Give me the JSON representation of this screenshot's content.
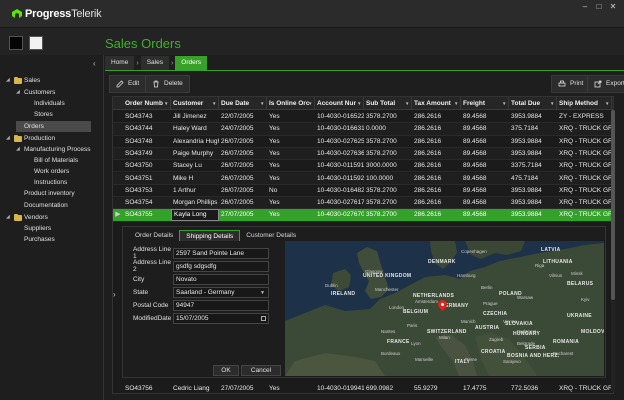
{
  "app": {
    "brand_bold": "Progress",
    "brand_light": "Telerik"
  },
  "window_controls": [
    "–",
    "□",
    "✕"
  ],
  "header": {
    "title": "Sales Orders"
  },
  "sidebar": {
    "items": [
      {
        "label": "Sales",
        "level": 0,
        "folder": true
      },
      {
        "label": "Customers",
        "level": 1,
        "folder": false
      },
      {
        "label": "Individuals",
        "level": 2,
        "folder": false
      },
      {
        "label": "Stores",
        "level": 2,
        "folder": false
      },
      {
        "label": "Orders",
        "level": 1,
        "folder": false,
        "selected": true
      },
      {
        "label": "Production",
        "level": 0,
        "folder": true
      },
      {
        "label": "Manufacturing Process",
        "level": 1,
        "folder": false
      },
      {
        "label": "Bill of Materials",
        "level": 2,
        "folder": false
      },
      {
        "label": "Work orders",
        "level": 2,
        "folder": false
      },
      {
        "label": "Instructions",
        "level": 2,
        "folder": false
      },
      {
        "label": "Product inventory",
        "level": 1,
        "folder": false
      },
      {
        "label": "Documentation",
        "level": 1,
        "folder": false
      },
      {
        "label": "Vendors",
        "level": 0,
        "folder": true
      },
      {
        "label": "Suppliers",
        "level": 1,
        "folder": false
      },
      {
        "label": "Purchases",
        "level": 1,
        "folder": false
      }
    ]
  },
  "breadcrumb": {
    "home": "Home",
    "sales": "Sales",
    "orders": "Orders"
  },
  "toolbar": {
    "edit": "Edit",
    "delete": "Delete",
    "print": "Print",
    "export": "Export"
  },
  "grid": {
    "columns": [
      "Order Numb",
      "Customer",
      "Due Date",
      "Is Online Orc",
      "Account Nur",
      "Sub Total",
      "Tax Amount",
      "Freight",
      "Total Due",
      "Ship Method"
    ],
    "rows": [
      [
        "SO43743",
        "Jill Jimenez",
        "22/07/2005",
        "Yes",
        "10-4030-016522",
        "3578.2700",
        "286.2616",
        "89.4568",
        "3953.9884",
        "ZY - EXPRESS"
      ],
      [
        "SO43744",
        "Haley Ward",
        "24/07/2005",
        "Yes",
        "10-4030-016631",
        "0.0000",
        "286.2616",
        "89.4568",
        "375.7184",
        "XRQ - TRUCK GR"
      ],
      [
        "SO43748",
        "Alexandria Hughe",
        "26/07/2005",
        "Yes",
        "10-4030-027625",
        "3578.2700",
        "286.2616",
        "89.4568",
        "3953.9884",
        "XRQ - TRUCK GR"
      ],
      [
        "SO43749",
        "Paige Murphy",
        "26/07/2005",
        "Yes",
        "10-4030-027636",
        "3578.2700",
        "286.2616",
        "89.4568",
        "3953.9884",
        "XRQ - TRUCK GR"
      ],
      [
        "SO43750",
        "Stacey Lu",
        "26/07/2005",
        "Yes",
        "10-4030-011591",
        "3000.0000",
        "286.2616",
        "89.4568",
        "3375.7184",
        "XRQ - TRUCK GR"
      ],
      [
        "SO43751",
        "Mike H",
        "26/07/2005",
        "Yes",
        "10-4030-011592",
        "100.0000",
        "286.2616",
        "89.4568",
        "475.7184",
        "XRQ - TRUCK GR"
      ],
      [
        "SO43753",
        "1 Arthur",
        "26/07/2005",
        "No",
        "10-4030-016482",
        "3578.2700",
        "286.2616",
        "89.4568",
        "3953.9884",
        "XRQ - TRUCK GR"
      ],
      [
        "SO43754",
        "Morgan Phillips",
        "26/07/2005",
        "Yes",
        "10-4030-027617",
        "3578.2700",
        "286.2616",
        "89.4568",
        "3953.9884",
        "XRQ - TRUCK GR"
      ],
      [
        "SO43755",
        "Kayla Long",
        "27/07/2005",
        "Yes",
        "10-4030-027670",
        "3578.2700",
        "286.2616",
        "89.4568",
        "3953.9884",
        "XRQ - TRUCK GR"
      ]
    ],
    "last_row": [
      "SO43756",
      "Cedric Liang",
      "27/07/2005",
      "Yes",
      "10-4030-019941",
      "699.0982",
      "55.9279",
      "17.4775",
      "772.5036",
      "XRQ - TRUCK GR"
    ]
  },
  "details": {
    "tabs": [
      "Order Details",
      "Shipping Details",
      "Customer Details"
    ],
    "fields": [
      {
        "label": "Address Line 1",
        "value": "2597 Sand Pointe Lane"
      },
      {
        "label": "Address Line 2",
        "value": "gsdfg sdgsdfg"
      },
      {
        "label": "City",
        "value": "Novato"
      },
      {
        "label": "State",
        "value": "Saarland - Germany"
      },
      {
        "label": "Postal Code",
        "value": "94947"
      },
      {
        "label": "ModifiedDate",
        "value": "15/07/2005"
      }
    ],
    "ok": "OK",
    "cancel": "Cancel"
  },
  "map": {
    "labels": [
      "DENMARK",
      "UNITED KINGDOM",
      "IRELAND",
      "NETHERLANDS",
      "BELGIUM",
      "GERMANY",
      "CZECHIA",
      "POLAND",
      "AUSTRIA",
      "FRANCE",
      "SWITZERLAND",
      "CROATIA",
      "BOSNIA AND HERZ.",
      "ITALY",
      "SERBIA",
      "ROMANIA",
      "HUNGARY",
      "LITHUANIA",
      "LATVIA",
      "BELARUS",
      "UKRAINE",
      "MOLDOVA",
      "SLOVAKIA"
    ],
    "cities": [
      "London",
      "Paris",
      "Berlin",
      "Hamburg",
      "Dublin",
      "Amsterdam",
      "Prague",
      "Vienna",
      "Milan",
      "Rome",
      "Warsaw",
      "Budapest",
      "Belgrade",
      "Zagreb",
      "Lyon",
      "Munich",
      "Minsk",
      "Kyiv",
      "Riga",
      "Vilnius",
      "Bordeaux",
      "Manchester",
      "Glasgow",
      "Copenhagen",
      "Marseille",
      "Nantes",
      "Bucharest",
      "Sarajevo"
    ]
  },
  "colors": {
    "accent": "#37a12a",
    "selected_row": "#34a12a",
    "background": "#1e1e1e",
    "map_water": "#1d3149",
    "pin": "#dd2222"
  }
}
